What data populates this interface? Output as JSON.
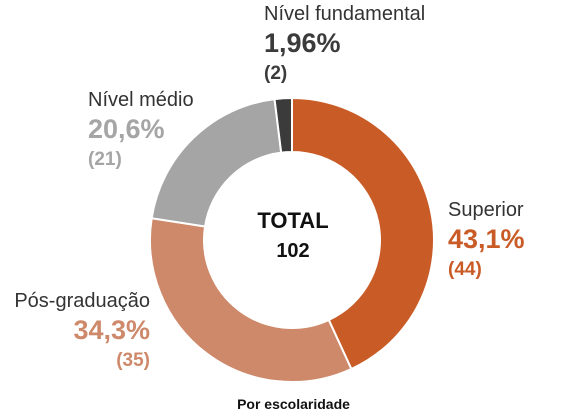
{
  "chart_data": {
    "type": "pie",
    "variant": "donut",
    "caption": "Por escolaridade",
    "center": {
      "label": "TOTAL",
      "value": "102"
    },
    "slices": [
      {
        "name": "Superior",
        "value": 44,
        "percent_label": "43,1%",
        "count_label": "(44)",
        "color": "#C95B26"
      },
      {
        "name": "Pós-graduação",
        "value": 35,
        "percent_label": "34,3%",
        "count_label": "(35)",
        "color": "#CE886A"
      },
      {
        "name": "Nível médio",
        "value": 21,
        "percent_label": "20,6%",
        "count_label": "(21)",
        "color": "#A5A5A5"
      },
      {
        "name": "Nível fundamental",
        "value": 2,
        "percent_label": "1,96%",
        "count_label": "(2)",
        "color": "#3B3B3B"
      }
    ]
  }
}
